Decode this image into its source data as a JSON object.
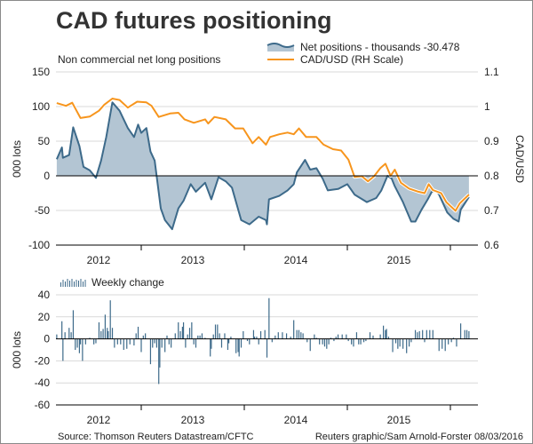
{
  "title": "CAD futures positioning",
  "subtitle": "Non commercial net long positions",
  "source": "Source: Thomson Reuters Datastream/CFTC",
  "credit": "Reuters graphic/Sam Arnold-Forster 08/03/2016",
  "colors": {
    "area_fill": "#b3c5d3",
    "area_line": "#3d6a8a",
    "cad_line": "#f7951d",
    "bars": "#3d6a8a",
    "grid": "#d9d9d9",
    "axis": "#000000"
  },
  "chart_data": [
    {
      "type": "area",
      "legend": [
        {
          "label": "Net positions - thousands -30.478",
          "icon": "area-swatch"
        },
        {
          "label": "CAD/USD (RH Scale)",
          "icon": "line-swatch"
        }
      ],
      "ylabel": "000 lots",
      "y2label": "CAD/USD",
      "ylim": [
        -100,
        150
      ],
      "y2lim": [
        0.6,
        1.1
      ],
      "yticks": [
        "150",
        "100",
        "50",
        "0",
        "-50",
        "-100"
      ],
      "y2ticks": [
        "1.1",
        "1",
        "0.9",
        "0.8",
        "0.7",
        "0.6"
      ],
      "xticks": [
        "2012",
        "2013",
        "2014",
        "2015"
      ],
      "xlim": [
        2012.17,
        2016.27
      ],
      "grid": true,
      "series": [
        {
          "name": "Net positions - thousands",
          "type": "area",
          "axis": "left",
          "x": [
            2012.18,
            2012.23,
            2012.24,
            2012.3,
            2012.34,
            2012.4,
            2012.44,
            2012.5,
            2012.56,
            2012.61,
            2012.66,
            2012.72,
            2012.79,
            2012.87,
            2012.93,
            2012.97,
            2013.0,
            2013.05,
            2013.09,
            2013.13,
            2013.19,
            2013.23,
            2013.3,
            2013.36,
            2013.41,
            2013.48,
            2013.53,
            2013.62,
            2013.68,
            2013.75,
            2013.82,
            2013.88,
            2013.97,
            2014.05,
            2014.14,
            2014.21,
            2014.22,
            2014.24,
            2014.34,
            2014.42,
            2014.48,
            2014.51,
            2014.59,
            2014.64,
            2014.7,
            2014.76,
            2014.81,
            2014.91,
            2015.0,
            2015.07,
            2015.19,
            2015.28,
            2015.33,
            2015.39,
            2015.43,
            2015.46,
            2015.54,
            2015.62,
            2015.66,
            2015.72,
            2015.78,
            2015.82,
            2015.86,
            2015.89,
            2015.97,
            2016.03,
            2016.08,
            2016.1,
            2016.18
          ],
          "y": [
            24,
            41,
            26,
            30,
            70,
            43,
            13,
            8,
            -3,
            22,
            56,
            106,
            94,
            69,
            56,
            74,
            62,
            69,
            35,
            22,
            -47,
            -64,
            -77,
            -47,
            -36,
            -12,
            -23,
            -10,
            -34,
            -2,
            -8,
            -17,
            -64,
            -70,
            -59,
            -64,
            -70,
            -34,
            -29,
            -21,
            -12,
            5,
            23,
            9,
            11,
            -4,
            -21,
            -19,
            -12,
            -27,
            -38,
            -32,
            -21,
            0,
            -4,
            -15,
            -38,
            -66,
            -66,
            -49,
            -34,
            -23,
            -21,
            -27,
            -53,
            -62,
            -66,
            -49,
            -30.478
          ]
        },
        {
          "name": "CAD/USD (RH Scale)",
          "type": "line",
          "axis": "right",
          "x": [
            2012.18,
            2012.27,
            2012.33,
            2012.41,
            2012.5,
            2012.59,
            2012.64,
            2012.72,
            2012.79,
            2012.87,
            2012.96,
            2013.05,
            2013.1,
            2013.17,
            2013.28,
            2013.36,
            2013.42,
            2013.51,
            2013.62,
            2013.65,
            2013.71,
            2013.82,
            2013.91,
            2013.99,
            2014.08,
            2014.14,
            2014.21,
            2014.25,
            2014.34,
            2014.42,
            2014.48,
            2014.53,
            2014.6,
            2014.7,
            2014.77,
            2014.86,
            2014.94,
            2015.01,
            2015.07,
            2015.14,
            2015.2,
            2015.26,
            2015.32,
            2015.37,
            2015.42,
            2015.46,
            2015.52,
            2015.6,
            2015.69,
            2015.75,
            2015.79,
            2015.83,
            2015.91,
            2015.96,
            2016.05,
            2016.09,
            2016.18
          ],
          "y": [
            1.01,
            1.002,
            1.011,
            0.967,
            0.971,
            0.988,
            1.005,
            1.023,
            1.019,
            0.997,
            1.014,
            1.012,
            1.002,
            0.97,
            0.98,
            0.982,
            0.963,
            0.953,
            0.963,
            0.951,
            0.97,
            0.963,
            0.937,
            0.937,
            0.894,
            0.912,
            0.89,
            0.912,
            0.92,
            0.925,
            0.92,
            0.937,
            0.912,
            0.912,
            0.89,
            0.877,
            0.873,
            0.847,
            0.797,
            0.799,
            0.784,
            0.799,
            0.822,
            0.835,
            0.8,
            0.818,
            0.78,
            0.763,
            0.754,
            0.75,
            0.776,
            0.759,
            0.75,
            0.724,
            0.699,
            0.72,
            0.746
          ]
        }
      ]
    },
    {
      "type": "bar",
      "legend": [
        {
          "label": "Weekly change",
          "icon": "bar-swatch"
        }
      ],
      "ylabel": "000 lots",
      "ylim": [
        -60,
        40
      ],
      "yticks": [
        "40",
        "20",
        "0",
        "-20",
        "-40",
        "-60"
      ],
      "xticks": [
        "2012",
        "2013",
        "2014",
        "2015"
      ],
      "xlim": [
        2012.17,
        2016.27
      ],
      "grid": true,
      "series": [
        {
          "name": "Weekly change",
          "x": [
            2012.18,
            2012.23,
            2012.24,
            2012.26,
            2012.3,
            2012.32,
            2012.34,
            2012.36,
            2012.38,
            2012.4,
            2012.41,
            2012.43,
            2012.46,
            2012.5,
            2012.54,
            2012.56,
            2012.59,
            2012.61,
            2012.63,
            2012.65,
            2012.67,
            2012.68,
            2012.7,
            2012.72,
            2012.74,
            2012.77,
            2012.8,
            2012.83,
            2012.86,
            2012.89,
            2012.93,
            2012.95,
            2012.97,
            2013.0,
            2013.02,
            2013.04,
            2013.09,
            2013.11,
            2013.13,
            2013.15,
            2013.17,
            2013.18,
            2013.2,
            2013.23,
            2013.25,
            2013.27,
            2013.29,
            2013.33,
            2013.36,
            2013.38,
            2013.4,
            2013.41,
            2013.43,
            2013.45,
            2013.47,
            2013.49,
            2013.51,
            2013.53,
            2013.55,
            2013.57,
            2013.59,
            2013.62,
            2013.67,
            2013.68,
            2013.7,
            2013.72,
            2013.74,
            2013.76,
            2013.78,
            2013.81,
            2013.84,
            2013.85,
            2013.87,
            2013.92,
            2013.94,
            2013.95,
            2013.97,
            2013.99,
            2014.03,
            2014.05,
            2014.09,
            2014.1,
            2014.12,
            2014.14,
            2014.16,
            2014.2,
            2014.22,
            2014.24,
            2014.27,
            2014.3,
            2014.33,
            2014.37,
            2014.41,
            2014.45,
            2014.48,
            2014.51,
            2014.53,
            2014.55,
            2014.57,
            2014.61,
            2014.64,
            2014.68,
            2014.7,
            2014.73,
            2014.76,
            2014.78,
            2014.8,
            2014.82,
            2014.84,
            2014.87,
            2014.89,
            2014.91,
            2014.95,
            2014.99,
            2015.01,
            2015.04,
            2015.06,
            2015.09,
            2015.11,
            2015.13,
            2015.16,
            2015.18,
            2015.22,
            2015.25,
            2015.32,
            2015.35,
            2015.37,
            2015.38,
            2015.4,
            2015.44,
            2015.47,
            2015.49,
            2015.51,
            2015.54,
            2015.575,
            2015.6,
            2015.62,
            2015.66,
            2015.68,
            2015.7,
            2015.73,
            2015.75,
            2015.77,
            2015.8,
            2015.83,
            2015.89,
            2015.92,
            2015.95,
            2015.98,
            2016.01,
            2016.03,
            2016.06,
            2016.1,
            2016.14,
            2016.16,
            2016.18
          ],
          "y": [
            4,
            16,
            -20,
            6,
            10,
            6,
            26,
            -10,
            -8,
            -13,
            -5,
            -20,
            -5,
            1,
            -5,
            -4,
            15,
            7,
            9,
            22,
            10,
            7,
            35,
            10,
            -8,
            -5,
            -5,
            -10,
            -9,
            -5,
            -6,
            5,
            11,
            -12,
            3,
            5,
            -23,
            -8,
            -4,
            -8,
            -41,
            -26,
            -8,
            -12,
            3,
            -5,
            -8,
            5,
            15,
            7,
            11,
            15,
            -8,
            4,
            10,
            15,
            -5,
            -8,
            3,
            3,
            5,
            1,
            -16,
            -9,
            4,
            13,
            13,
            5,
            -8,
            5,
            -10,
            -4,
            2,
            -13,
            -12,
            -16,
            -8,
            7,
            -2,
            -5,
            8,
            2,
            2,
            -5,
            7,
            8,
            -17,
            37,
            -3,
            3,
            6,
            6,
            5,
            2,
            17,
            8,
            8,
            6,
            5,
            -3,
            -11,
            4,
            1,
            -5,
            -5,
            -7,
            -9,
            -5,
            1,
            -2,
            2,
            4,
            4,
            4,
            -2,
            -5,
            -7,
            6,
            -5,
            -5,
            -3,
            -2,
            6,
            3,
            4,
            12,
            8,
            9,
            2,
            -12,
            -4,
            -9,
            -7,
            -9,
            -13,
            -7,
            -3,
            8,
            6,
            7,
            8,
            -3,
            8,
            8,
            8,
            -11,
            -9,
            -11,
            -5,
            -3,
            1,
            -7,
            14,
            8,
            8,
            7
          ]
        }
      ]
    }
  ]
}
